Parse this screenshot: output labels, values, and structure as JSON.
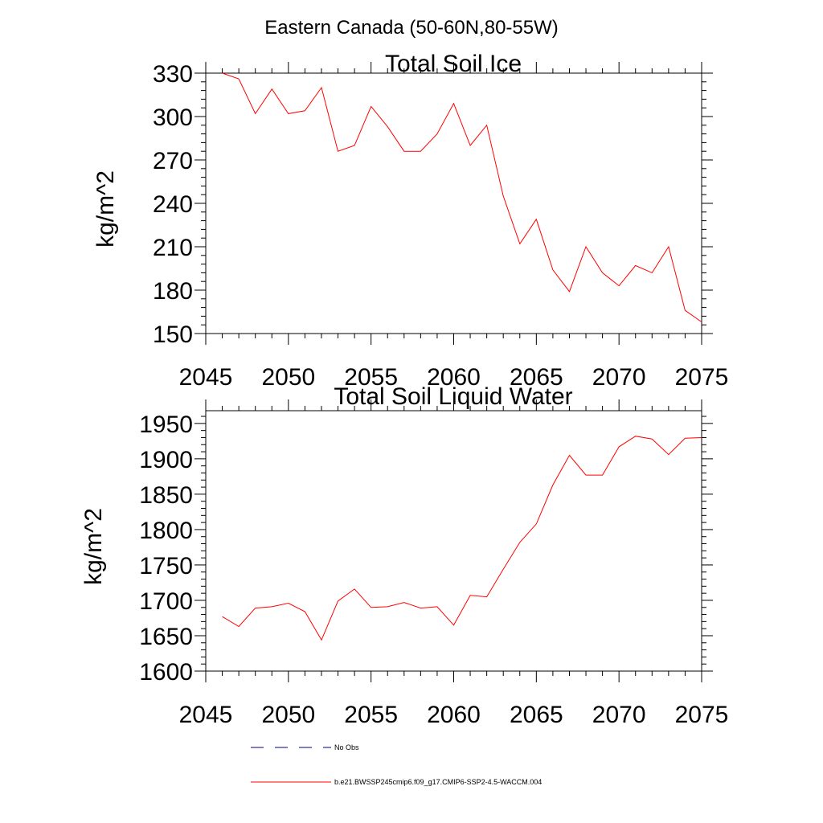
{
  "figure_title": "Eastern Canada (50-60N,80-55W)",
  "colors": {
    "model": "#ff0000",
    "obs": "#000080",
    "axis": "#000000",
    "background": "#ffffff"
  },
  "legend": [
    {
      "label": "No Obs",
      "style": "dashed",
      "color": "#000080"
    },
    {
      "label": "b.e21.BWSSP245cmip6.f09_g17.CMIP6-SSP2-4.5-WACCM.004",
      "style": "solid",
      "color": "#ff0000"
    }
  ],
  "chart_data": [
    {
      "type": "line",
      "title": "Total Soil Ice",
      "xlabel": "",
      "ylabel": "kg/m^2",
      "xlim": [
        2045,
        2075
      ],
      "ylim": [
        150,
        330
      ],
      "xticks": [
        2045,
        2050,
        2055,
        2060,
        2065,
        2070,
        2075
      ],
      "yticks": [
        150,
        180,
        210,
        240,
        270,
        300,
        330
      ],
      "y_minor_step": 6,
      "grid": false,
      "x": [
        2046,
        2047,
        2048,
        2049,
        2050,
        2051,
        2052,
        2053,
        2054,
        2055,
        2056,
        2057,
        2058,
        2059,
        2060,
        2061,
        2062,
        2063,
        2064,
        2065,
        2066,
        2067,
        2068,
        2069,
        2070,
        2071,
        2072,
        2073,
        2074,
        2075
      ],
      "series": [
        {
          "name": "b.e21.BWSSP245cmip6.f09_g17.CMIP6-SSP2-4.5-WACCM.004",
          "color": "#ff0000",
          "values": [
            330,
            326,
            302,
            319,
            302,
            304,
            320,
            276,
            280,
            307,
            293,
            276,
            276,
            288,
            309,
            280,
            294,
            245,
            212,
            229,
            194,
            179,
            210,
            192,
            183,
            197,
            192,
            210,
            166,
            158
          ]
        }
      ]
    },
    {
      "type": "line",
      "title": "Total Soil Liquid Water",
      "xlabel": "",
      "ylabel": "kg/m^2",
      "xlim": [
        2045,
        2075
      ],
      "ylim": [
        1600,
        1968
      ],
      "xticks": [
        2045,
        2050,
        2055,
        2060,
        2065,
        2070,
        2075
      ],
      "yticks": [
        1600,
        1650,
        1700,
        1750,
        1800,
        1850,
        1900,
        1950
      ],
      "y_minor_step": 10,
      "grid": false,
      "x": [
        2046,
        2047,
        2048,
        2049,
        2050,
        2051,
        2052,
        2053,
        2054,
        2055,
        2056,
        2057,
        2058,
        2059,
        2060,
        2061,
        2062,
        2063,
        2064,
        2065,
        2066,
        2067,
        2068,
        2069,
        2070,
        2071,
        2072,
        2073,
        2074,
        2075
      ],
      "series": [
        {
          "name": "b.e21.BWSSP245cmip6.f09_g17.CMIP6-SSP2-4.5-WACCM.004",
          "color": "#ff0000",
          "values": [
            1677,
            1663,
            1689,
            1691,
            1696,
            1684,
            1644,
            1699,
            1716,
            1690,
            1691,
            1697,
            1689,
            1691,
            1665,
            1707,
            1705,
            1744,
            1782,
            1808,
            1863,
            1905,
            1877,
            1877,
            1917,
            1932,
            1928,
            1906,
            1929,
            1930
          ]
        }
      ]
    }
  ]
}
